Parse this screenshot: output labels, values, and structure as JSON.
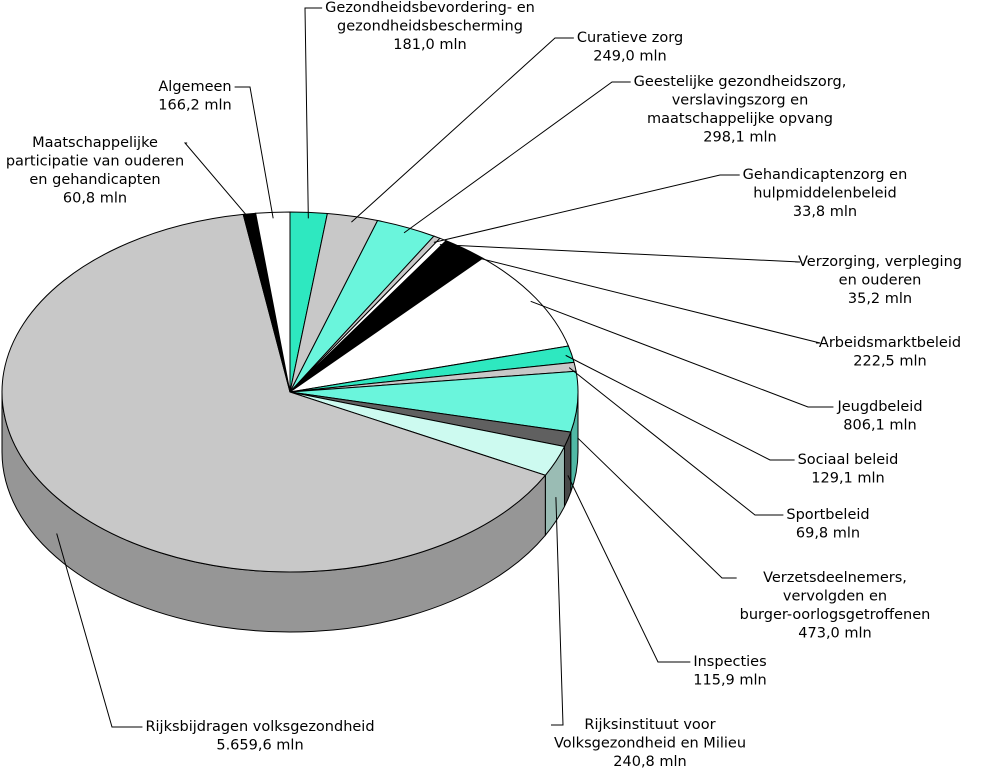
{
  "chart_data": {
    "type": "pie3d",
    "categories": [
      "Gezondheidsbevordering- en\ngezondheidsbescherming",
      "Curatieve zorg",
      "Geestelijke gezondheidszorg,\nverslavingszorg en\nmaatschappelijke opvang",
      "Gehandicaptenzorg en\nhulpmiddelenbeleid",
      "Verzorging, verpleging\nen ouderen",
      "Arbeidsmarktbeleid",
      "Jeugdbeleid",
      "Sociaal beleid",
      "Sportbeleid",
      "Verzetsdeelnemers,\nvervolgden en\nburger-oorlogsgetroffenen",
      "Inspecties",
      "Rijksinstituut voor\nVolksgezondheid en Milieu",
      "Rijksbijdragen volksgezondheid",
      "Maatschappelijke\nparticipatie van ouderen\nen gehandicapten",
      "Algemeen"
    ],
    "values": [
      181.0,
      249.0,
      298.1,
      33.8,
      35.2,
      222.5,
      806.1,
      129.1,
      69.8,
      473.0,
      115.9,
      240.8,
      5659.6,
      60.8,
      166.2
    ],
    "value_labels": [
      "181,0 mln",
      "249,0 mln",
      "298,1 mln",
      "33,8 mln",
      "35,2 mln",
      "222,5 mln",
      "806,1 mln",
      "129,1 mln",
      "69,8 mln",
      "473,0 mln",
      "115,9 mln",
      "240,8 mln",
      "5.659,6 mln",
      "60,8 mln",
      "166,2 mln"
    ],
    "colors": [
      "#2ee8c0",
      "#c8c8c8",
      "#6af5dc",
      "#c8c8c8",
      "#ffffff",
      "#000000",
      "#ffffff",
      "#2ee8c0",
      "#c8c8c8",
      "#6af5dc",
      "#606060",
      "#cdfaf0",
      "#c8c8c8",
      "#000000",
      "#ffffff"
    ]
  }
}
